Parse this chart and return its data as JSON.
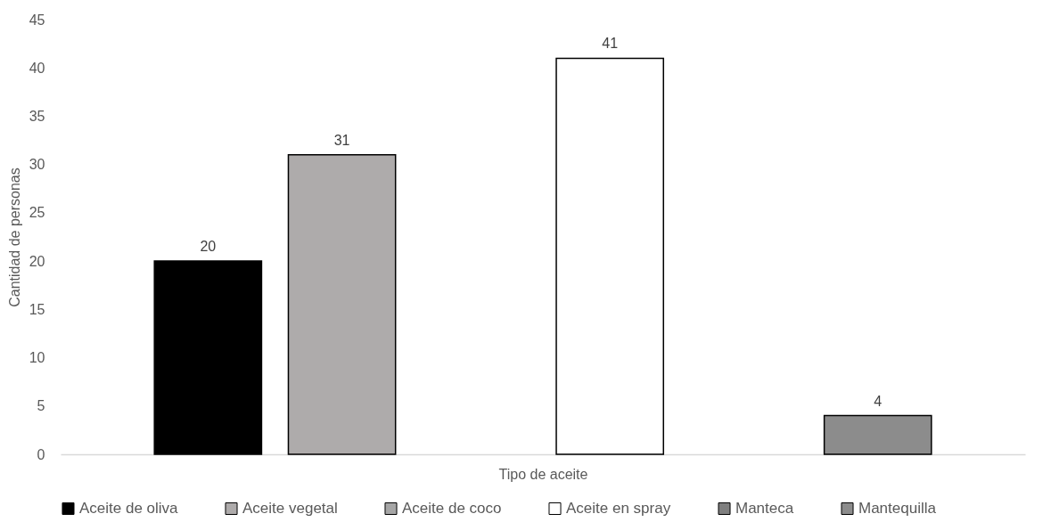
{
  "chart_data": {
    "type": "bar",
    "xlabel": "Tipo de aceite",
    "ylabel": "Cantidad de personas",
    "categories": [
      null
    ],
    "series": [
      {
        "name": "Aceite de oliva",
        "color": "#000000",
        "values": [
          20
        ]
      },
      {
        "name": "Aceite vegetal",
        "color": "#aeabab",
        "values": [
          31
        ]
      },
      {
        "name": "Aceite de coco",
        "color": "#a6a6a6",
        "values": [
          null
        ]
      },
      {
        "name": "Aceite en spray",
        "color": "#ffffff",
        "values": [
          41
        ]
      },
      {
        "name": "Manteca",
        "color": "#7f7f7f",
        "values": [
          null
        ]
      },
      {
        "name": "Mantequilla",
        "color": "#8c8c8c",
        "values": [
          4
        ]
      }
    ],
    "ylim": [
      0,
      45
    ],
    "yticks": [
      0,
      5,
      10,
      15,
      20,
      25,
      30,
      35,
      40,
      45
    ],
    "grid": false,
    "legend": "bottom",
    "data_labels": true,
    "tick_labels": "y"
  }
}
